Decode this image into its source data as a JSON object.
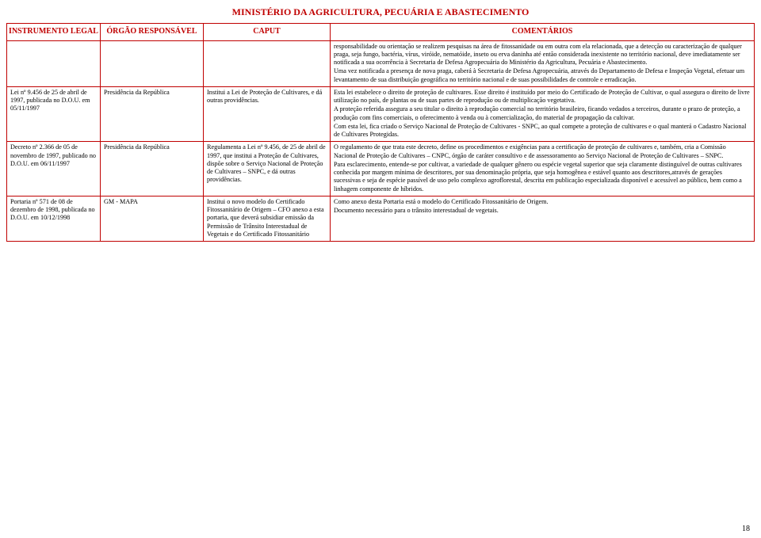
{
  "header": {
    "title": "MINISTÉRIO DA AGRICULTURA, PECUÁRIA E ABASTECIMENTO"
  },
  "columns": {
    "instrument": "INSTRUMENTO LEGAL",
    "body": "ÓRGÃO RESPONSÁVEL",
    "caput": "CAPUT",
    "comments": "COMENTÁRIOS"
  },
  "rows": [
    {
      "instrument": "",
      "body": "",
      "caput": "",
      "comments": "responsabilidade ou orientação se realizem pesquisas na área de fitossanidade ou em outra com ela relacionada, que a detecção ou caracterização de qualquer praga, seja fungo, bactéria, vírus, viróide, nematóide, inseto ou erva daninha até então considerada inexistente no território nacional, deve imediatamente ser notificada a sua ocorrência à Secretaria de Defesa Agropecuária do Ministério da Agricultura, Pecuária e Abastecimento.\nUma vez notificada a presença de nova praga, caberá à Secretaria de Defesa Agropecuária, através do Departamento de Defesa e Inspeção Vegetal, efetuar um levantamento de sua distribuição geográfica no território nacional e de suas possibilidades de controle e erradicação."
    },
    {
      "instrument": "Lei nº 9.456 de 25 de abril de 1997, publicada no D.O.U. em 05/11/1997",
      "body": "Presidência da República",
      "caput": "Institui a Lei de Proteção de Cultivares, e dá outras providências.",
      "comments": "Esta lei estabelece o direito de proteção de cultivares. Esse direito é instituído por meio do Certificado de Proteção de Cultivar, o qual assegura o direito de livre utilização no país, de plantas ou de suas partes de reprodução ou de multiplicação vegetativa.\nA proteção referida assegura a seu titular o direito à reprodução comercial no território brasileiro, ficando vedados a terceiros, durante o prazo de proteção, a produção com fins comerciais, o oferecimento à venda ou à comercialização, do material de propagação da cultivar.\nCom esta lei, fica criado o Serviço Nacional de Proteção de Cultivares - SNPC, ao qual compete a proteção de cultivares e o qual manterá o Cadastro Nacional de Cultivares Protegidas."
    },
    {
      "instrument": "Decreto nº 2.366 de 05 de novembro de 1997, publicado no D.O.U. em 06/11/1997",
      "body": "Presidência da República",
      "caput": "Regulamenta a Lei nº 9.456, de 25 de abril de 1997, que institui a Proteção de Cultivares, dispõe sobre o Serviço Nacional de Proteção de Cultivares – SNPC, e dá outras providências.",
      "comments": "O regulamento de que trata este decreto, define os procedimentos e exigências para a certificação de proteção de cultivares e, também, cria a Comissão Nacional de Proteção de Cultivares – CNPC, órgão de caráter consultivo e de assessoramento ao Serviço Nacional de Proteção de Cultivares – SNPC.\nPara esclarecimento, entende-se por cultivar, a variedade de qualquer gênero ou espécie vegetal superior que seja claramente distinguível de outras cultivares conhecida por margem mínima de descritores, por sua denominação própria, que seja homogênea e estável quanto aos descritores,através de gerações sucessivas e seja de espécie passível de uso pelo complexo agroflorestal, descrita em publicação especializada disponível e acessível ao público, bem como a linhagem componente de híbridos."
    },
    {
      "instrument": "Portaria nº 571 de 08 de dezembro de 1998, publicada no D.O.U. em 10/12/1998",
      "body": "GM - MAPA",
      "caput": "Institui o novo modelo do Certificado Fitossanitário de Origem – CFO anexo a esta portaria, que deverá subsidiar emissão da Permissão de Trânsito Interestadual de Vegetais e do Certificado Fitossanitário",
      "comments": "Como anexo desta Portaria está o modelo do Certificado Fitossanitário de Origem.\nDocumento necessário para o trânsito interestadual de vegetais."
    }
  ],
  "page_number": "18",
  "colors": {
    "accent": "#c00000",
    "background": "#ffffff",
    "text": "#000000"
  },
  "typography": {
    "font_family": "Times New Roman",
    "title_size_pt": 12,
    "header_size_pt": 10,
    "cell_size_pt": 8
  }
}
